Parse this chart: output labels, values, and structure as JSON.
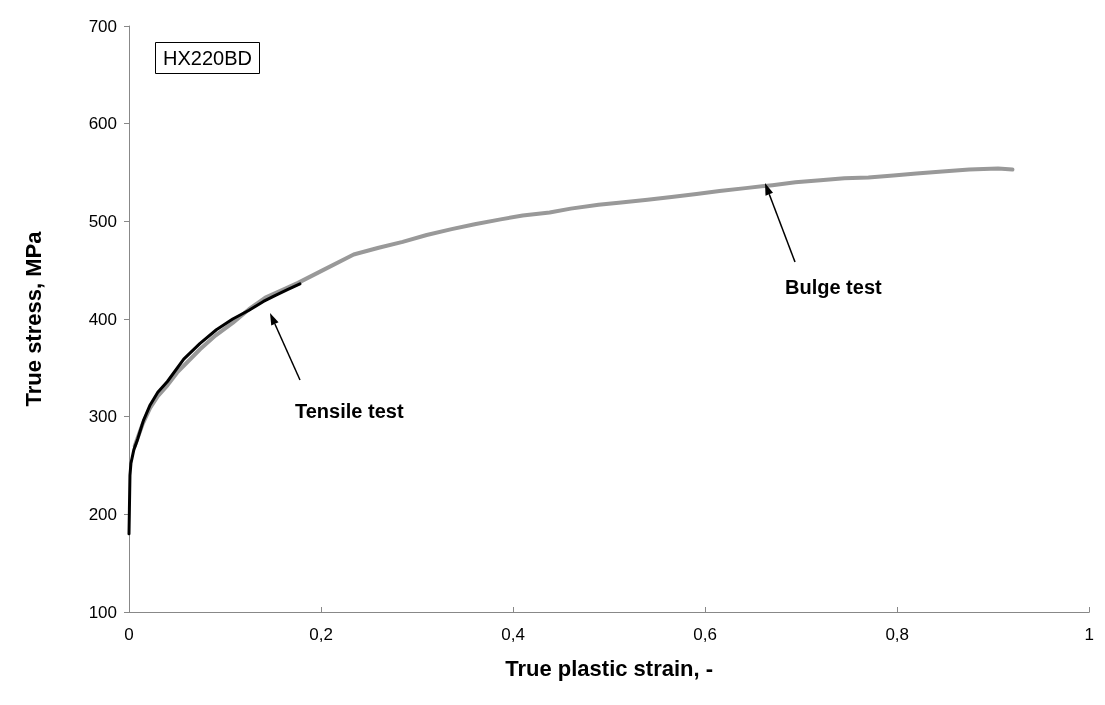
{
  "chart_data": {
    "type": "line",
    "title": "HX220BD",
    "xlabel": "True plastic strain, -",
    "ylabel": "True stress, MPa",
    "series": [
      {
        "x": [
          0.006,
          0.014,
          0.022,
          0.03,
          0.04,
          0.05,
          0.074,
          0.09,
          0.108,
          0.125,
          0.142,
          0.16,
          0.176,
          0.2,
          0.234,
          0.26,
          0.285,
          0.31,
          0.336,
          0.36,
          0.387,
          0.41,
          0.438,
          0.46,
          0.489,
          0.51,
          0.54,
          0.565,
          0.591,
          0.615,
          0.642,
          0.67,
          0.694,
          0.72,
          0.745,
          0.77,
          0.796,
          0.82,
          0.847,
          0.875,
          0.905,
          0.92
        ],
        "values": [
          270,
          292,
          309,
          321,
          332,
          345,
          369,
          383,
          396,
          410,
          422,
          430,
          437,
          449,
          466,
          473,
          479,
          486,
          492,
          497,
          502,
          506,
          509,
          513,
          517,
          519,
          522,
          525,
          528,
          531,
          534,
          537,
          540,
          542,
          544,
          545,
          547,
          549,
          551,
          553,
          554,
          553
        ],
        "color": "#999999"
      },
      {
        "x": [
          0,
          0.001,
          0.002,
          0.005,
          0.009,
          0.015,
          0.022,
          0.03,
          0.04,
          0.057,
          0.074,
          0.091,
          0.108,
          0.125,
          0.14,
          0.152,
          0.165,
          0.178
        ],
        "values": [
          180,
          240,
          252,
          266,
          277,
          296,
          312,
          325,
          336,
          359,
          375,
          389,
          400,
          409,
          418,
          424,
          430,
          436
        ],
        "color": "#000000"
      }
    ],
    "xlim": [
      0,
      1
    ],
    "ylim": [
      100,
      700
    ],
    "xticks": [
      0,
      {
        "value": 0.2,
        "label": "0,2"
      },
      {
        "value": 0.4,
        "label": "0,4"
      },
      {
        "value": 0.6,
        "label": "0,6"
      },
      {
        "value": 0.8,
        "label": "0,8"
      },
      1
    ],
    "yticks": [
      100,
      200,
      300,
      400,
      500,
      600,
      700
    ],
    "grid": false,
    "marker": "none",
    "line_style": "solid",
    "annotations": [
      "Tensile test",
      "Bulge test"
    ]
  }
}
